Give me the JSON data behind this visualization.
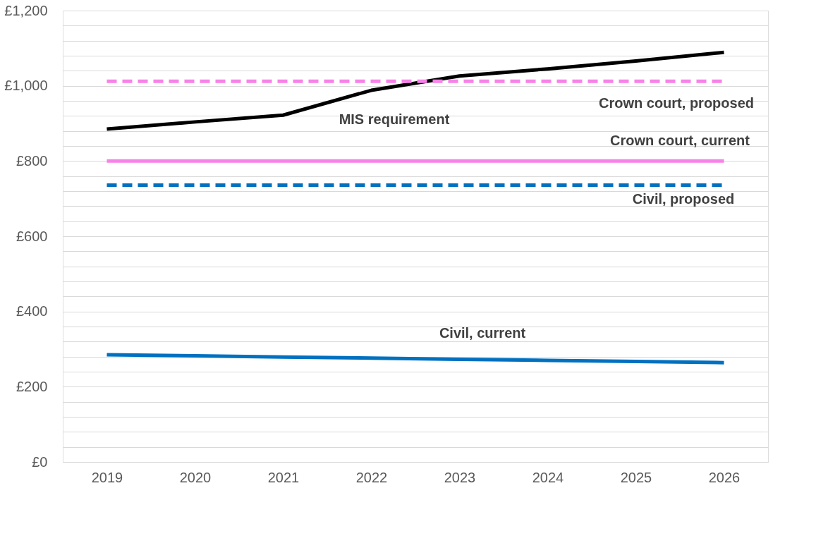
{
  "chart_data": {
    "type": "line",
    "categories": [
      "2019",
      "2020",
      "2021",
      "2022",
      "2023",
      "2024",
      "2025",
      "2026"
    ],
    "series": [
      {
        "name": "MIS requirement",
        "color": "#000000",
        "line_style": "solid",
        "values": [
          885,
          904,
          922,
          988,
          1026,
          1045,
          1066,
          1089
        ]
      },
      {
        "name": "Crown court, proposed",
        "color": "#f782e8",
        "line_style": "dashed",
        "values": [
          1012,
          1012,
          1012,
          1012,
          1012,
          1012,
          1012,
          1012
        ]
      },
      {
        "name": "Crown court, current",
        "color": "#f782e8",
        "line_style": "solid",
        "values": [
          800,
          800,
          800,
          800,
          800,
          800,
          800,
          800
        ]
      },
      {
        "name": "Civil, proposed",
        "color": "#0070c0",
        "line_style": "dashed",
        "values": [
          736,
          736,
          736,
          736,
          736,
          736,
          736,
          736
        ]
      },
      {
        "name": "Civil, current",
        "color": "#0070c0",
        "line_style": "solid",
        "values": [
          285,
          282,
          279,
          276,
          273,
          270,
          267,
          264
        ]
      }
    ],
    "ylim": [
      0,
      1200
    ],
    "yticks": [
      {
        "value": 0,
        "label": "£0"
      },
      {
        "value": 40,
        "label": null
      },
      {
        "value": 80,
        "label": null
      },
      {
        "value": 120,
        "label": null
      },
      {
        "value": 160,
        "label": null
      },
      {
        "value": 200,
        "label": "£200"
      },
      {
        "value": 240,
        "label": null
      },
      {
        "value": 280,
        "label": null
      },
      {
        "value": 320,
        "label": null
      },
      {
        "value": 360,
        "label": null
      },
      {
        "value": 400,
        "label": "£400"
      },
      {
        "value": 440,
        "label": null
      },
      {
        "value": 480,
        "label": null
      },
      {
        "value": 520,
        "label": null
      },
      {
        "value": 560,
        "label": null
      },
      {
        "value": 600,
        "label": "£600"
      },
      {
        "value": 640,
        "label": null
      },
      {
        "value": 680,
        "label": null
      },
      {
        "value": 720,
        "label": null
      },
      {
        "value": 760,
        "label": null
      },
      {
        "value": 800,
        "label": "£800"
      },
      {
        "value": 840,
        "label": null
      },
      {
        "value": 880,
        "label": null
      },
      {
        "value": 920,
        "label": null
      },
      {
        "value": 960,
        "label": null
      },
      {
        "value": 1000,
        "label": "£1,000"
      },
      {
        "value": 1040,
        "label": null
      },
      {
        "value": 1080,
        "label": null
      },
      {
        "value": 1120,
        "label": null
      },
      {
        "value": 1160,
        "label": null
      },
      {
        "value": 1200,
        "label": "£1,200"
      }
    ],
    "grid": "y",
    "legend": false,
    "marker": "none"
  }
}
